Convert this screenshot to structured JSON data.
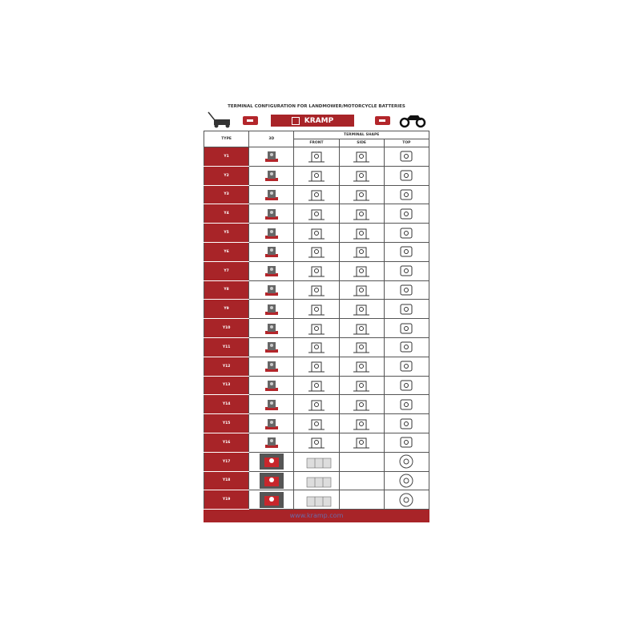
{
  "title": "TERMINAL CONFIGURATION FOR LANDMOWER/MOTORCYCLE BATTERIES",
  "brand": "KRAMP",
  "icons": [
    "lawnmower-icon",
    "battery-icon",
    "kramp-logo",
    "battery-icon",
    "motorcycle-icon"
  ],
  "accent": "#a82428",
  "headers": {
    "type": "TYPE",
    "three_d": "3D",
    "terminal_shape": "TERMINAL SHAPE",
    "front": "FRONT",
    "side": "SIDE",
    "top": "TOP"
  },
  "rows": [
    "Y1",
    "Y2",
    "Y3",
    "Y4",
    "Y5",
    "Y6",
    "Y7",
    "Y8",
    "Y9",
    "Y10",
    "Y11",
    "Y12",
    "Y13",
    "Y14",
    "Y15",
    "Y16",
    "Y17",
    "Y18",
    "Y19"
  ],
  "footer": "www.kramp.com"
}
